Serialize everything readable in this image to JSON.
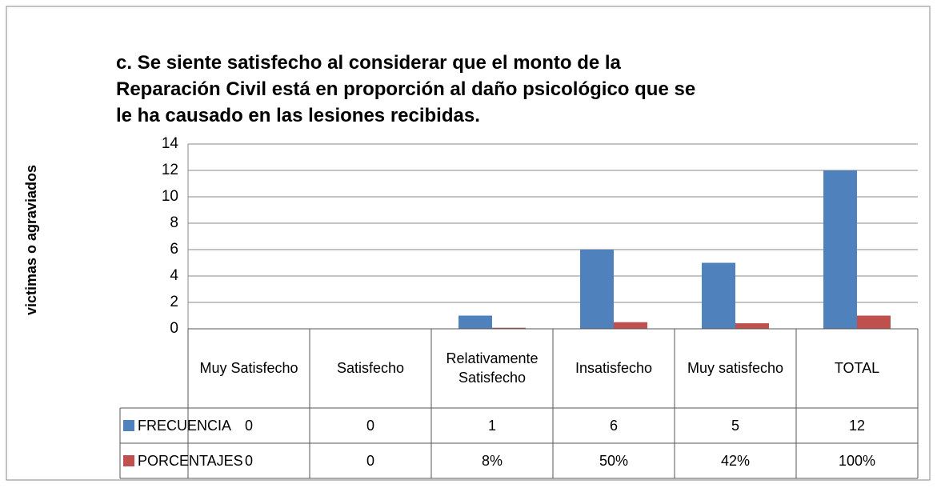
{
  "chart_data": {
    "type": "bar",
    "title": "c. Se siente satisfecho al considerar que el monto de la Reparación Civil está en proporción al daño psicológico que se le ha causado en las lesiones recibidas.",
    "ylabel": "victimas o agraviados",
    "categories": [
      "Muy Satisfecho",
      "Satisfecho",
      "Relativamente Satisfecho",
      "Insatisfecho",
      "Muy satisfecho",
      "TOTAL"
    ],
    "series": [
      {
        "name": "FRECUENCIA",
        "color": "#4f81bd",
        "values": [
          0,
          0,
          1,
          6,
          5,
          12
        ]
      },
      {
        "name": "PORCENTAJES",
        "color": "#c0504d",
        "values": [
          0,
          0,
          0.08,
          0.5,
          0.42,
          1
        ],
        "value_labels": [
          "0",
          "0",
          "8%",
          "50%",
          "42%",
          "100%"
        ]
      }
    ],
    "ylim": [
      0,
      14
    ],
    "yticks": [
      0,
      2,
      4,
      6,
      8,
      10,
      12,
      14
    ],
    "grid": true,
    "legend": "table"
  }
}
